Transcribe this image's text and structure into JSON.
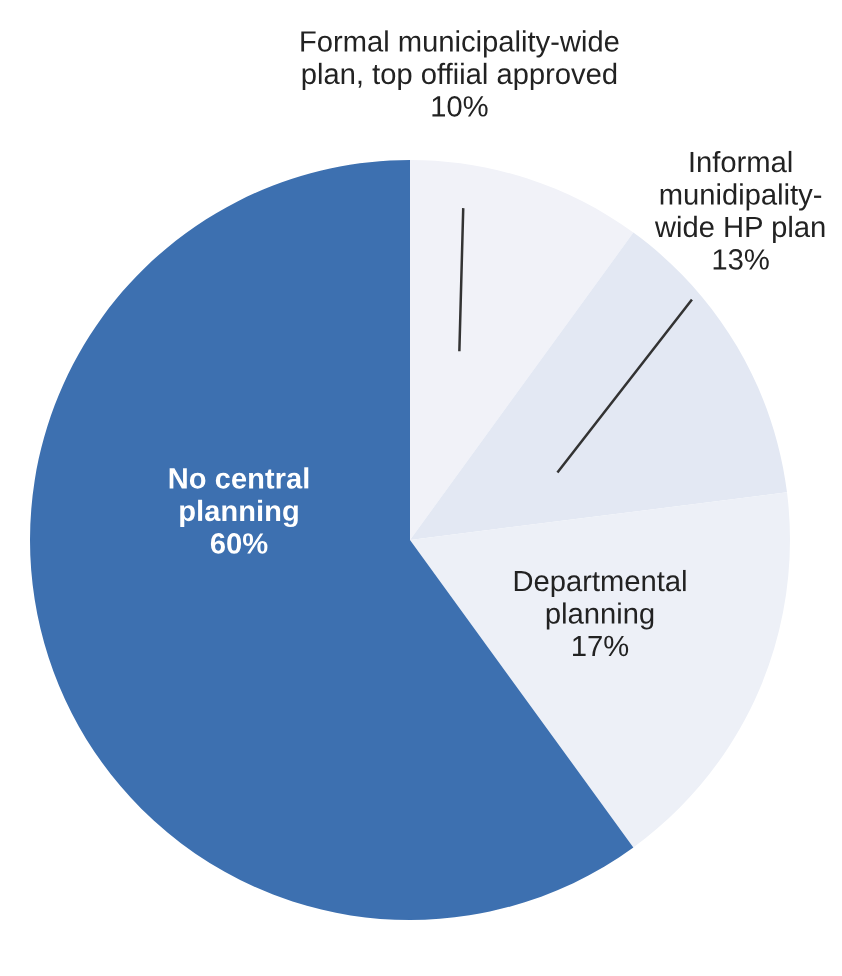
{
  "chart_data": {
    "type": "pie",
    "categories": [
      "Formal municipality-wide\nplan, top offiial approved",
      "Informal\nmunidipality-\nwide HP plan",
      "Departmental\nplanning",
      "No central\nplanning"
    ],
    "values": [
      10,
      13,
      17,
      60
    ],
    "value_labels": [
      "10%",
      "13%",
      "17%",
      "60%"
    ],
    "colors": [
      "#f1f2f8",
      "#e3e8f3",
      "#edf0f7",
      "#3d70b0"
    ]
  }
}
